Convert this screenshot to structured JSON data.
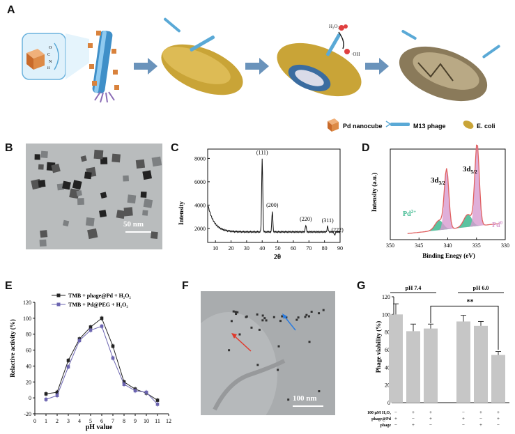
{
  "panel_labels": {
    "a": "A",
    "b": "B",
    "c": "C",
    "d": "D",
    "e": "E",
    "f": "F",
    "g": "G"
  },
  "panel_a": {
    "legend": {
      "pd": "Pd nanocube",
      "m13": "M13 phage",
      "ecoli": "E. coli"
    },
    "h2o2": "H₂O₂",
    "oh": "·OH",
    "colors": {
      "pd": "#d9823c",
      "phage": "#5aa9d6",
      "ecoli": "#c9a437",
      "arrow": "#6a93bb"
    }
  },
  "panel_b": {
    "scalebar": "50 nm"
  },
  "panel_c": {
    "chart_data": {
      "type": "line",
      "xlabel": "2θ",
      "ylabel": "Intensity",
      "xlim": [
        5,
        90
      ],
      "ylim": [
        800,
        8800
      ],
      "xticks": [
        "10",
        "20",
        "30",
        "40",
        "50",
        "60",
        "70",
        "80",
        "90"
      ],
      "yticks": [
        "2000",
        "4000",
        "6000",
        "8000"
      ],
      "peaks": [
        {
          "label": "(111)",
          "x": 40,
          "y": 8100
        },
        {
          "label": "(200)",
          "x": 46.5,
          "y": 3600
        },
        {
          "label": "(220)",
          "x": 68,
          "y": 2400
        },
        {
          "label": "(311)",
          "x": 82,
          "y": 2300
        },
        {
          "label": "(222)",
          "x": 86.5,
          "y": 1500
        }
      ]
    }
  },
  "panel_d": {
    "chart_data": {
      "type": "area",
      "xlabel": "Binding Enegy (eV)",
      "ylabel": "Intensity (a.u.)",
      "xlim": [
        350,
        330
      ],
      "xticks": [
        "350",
        "345",
        "340",
        "335",
        "330"
      ],
      "annotations": [
        "3d3/2",
        "3d5/2",
        "Pd2+",
        "Pd0"
      ],
      "peaks_pd0": [
        340.2,
        334.9
      ],
      "peaks_pd2": [
        341.5,
        336.5
      ]
    },
    "lab_3d32_main": "3d",
    "lab_3d32_sub": "3/2",
    "lab_3d52_main": "3d",
    "lab_3d52_sub": "5/2",
    "lab_pd2_main": "Pd",
    "lab_pd2_sup": "2+",
    "lab_pd0_main": "Pd",
    "lab_pd0_sup": "0",
    "colors": {
      "pd0": "#d79bcf",
      "pd2": "#3db98f",
      "envelope": "#e06060",
      "raw": "#888888"
    }
  },
  "panel_e": {
    "chart_data": {
      "type": "line",
      "xlabel": "pH value",
      "ylabel": "Relactive activity (%)",
      "xlim": [
        0,
        12
      ],
      "ylim": [
        -20,
        120
      ],
      "xticks": [
        "0",
        "1",
        "2",
        "3",
        "4",
        "5",
        "6",
        "7",
        "8",
        "9",
        "10",
        "11",
        "12"
      ],
      "yticks": [
        "-20",
        "0",
        "20",
        "40",
        "60",
        "80",
        "100",
        "120"
      ],
      "x": [
        1,
        2,
        3,
        4,
        5,
        6,
        7,
        8,
        9,
        10,
        11
      ],
      "series": [
        {
          "name": "TMB + phage@Pd + H₂O₂",
          "values": [
            5,
            7,
            47,
            74,
            89,
            100,
            65,
            20,
            11,
            6,
            -3
          ],
          "color": "#222222"
        },
        {
          "name": "TMB + Pd@PEG + H₂O₂",
          "values": [
            -2,
            3,
            39,
            72,
            85,
            90,
            50,
            17,
            9,
            7,
            -8
          ],
          "color": "#6b64b0"
        }
      ]
    }
  },
  "panel_f": {
    "scalebar": "100 nm"
  },
  "panel_g": {
    "chart_data": {
      "type": "bar",
      "ylabel": "Phage viability (%)",
      "ylim": [
        0,
        120
      ],
      "yticks": [
        "0",
        "20",
        "40",
        "60",
        "80",
        "100",
        "120"
      ],
      "groups": [
        "pH 7.4",
        "pH 6.0"
      ],
      "values": [
        100,
        81,
        84,
        92,
        87,
        54
      ],
      "errors": [
        12,
        8,
        5,
        7,
        5,
        4
      ],
      "significance": "**",
      "row_labels": [
        "100 μM H₂O₂",
        "phage@Pd",
        "phage"
      ],
      "rows": [
        [
          "−",
          "+",
          "+",
          "−",
          "+",
          "+"
        ],
        [
          "+",
          "−",
          "+",
          "+",
          "−",
          "+"
        ],
        [
          "−",
          "+",
          "−",
          "−",
          "+",
          "−"
        ]
      ]
    }
  }
}
